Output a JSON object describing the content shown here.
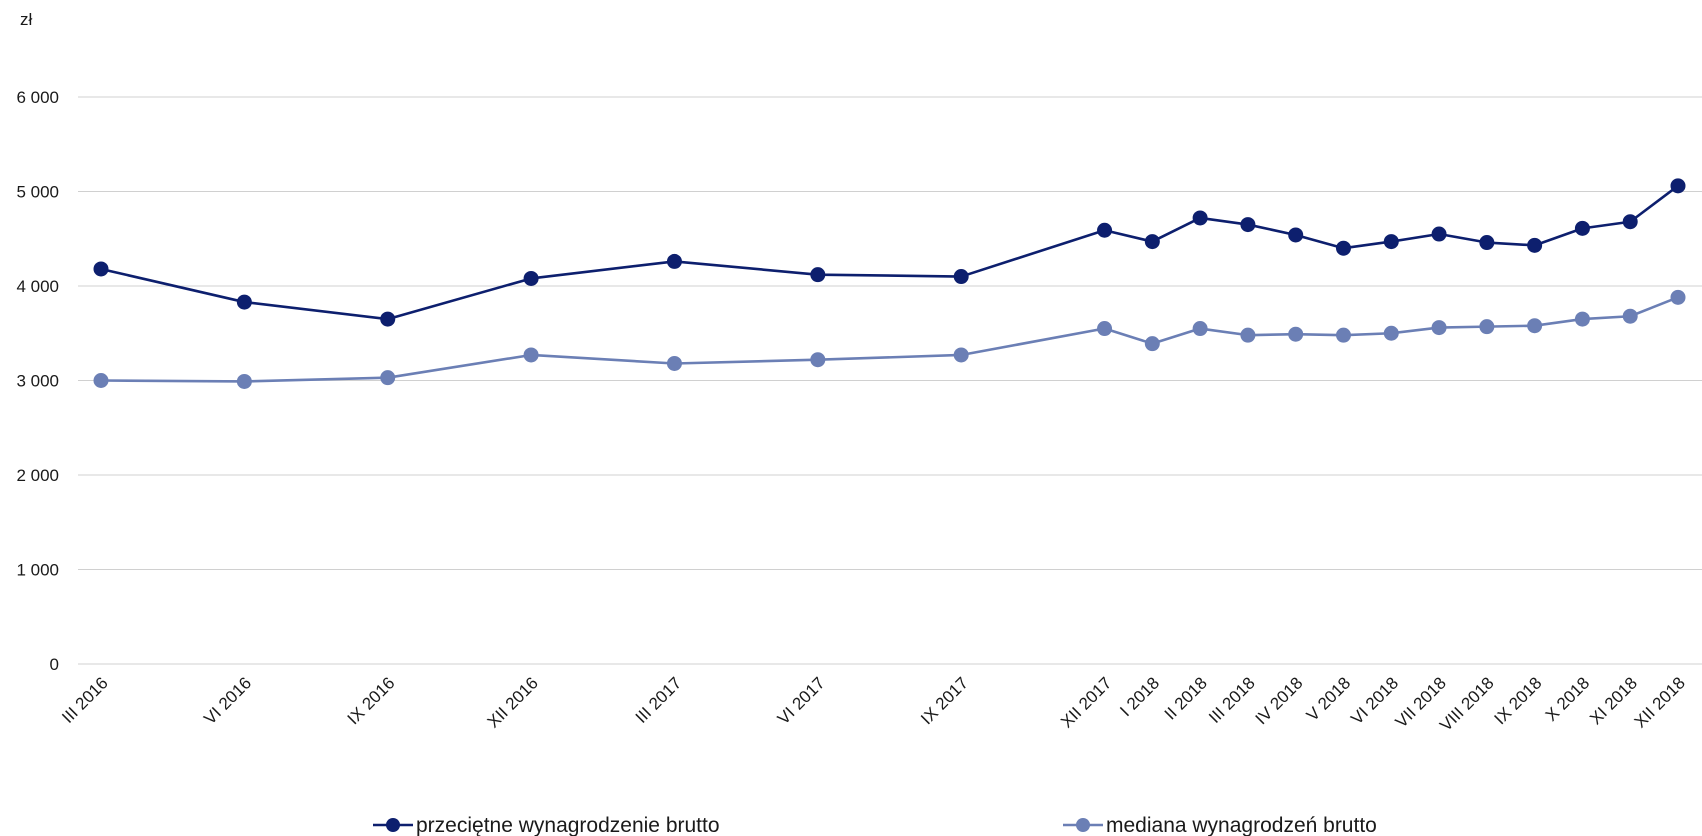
{
  "chart_data": {
    "type": "line",
    "title": "",
    "xlabel": "",
    "ylabel": "",
    "y_unit": "zł",
    "ylim": [
      0,
      6000
    ],
    "y_ticks": [
      0,
      1000,
      2000,
      3000,
      4000,
      5000,
      6000
    ],
    "y_tick_labels": [
      "0",
      "1 000",
      "2 000",
      "3 000",
      "4 000",
      "5 000",
      "6 000"
    ],
    "grid": true,
    "legend_position": "bottom",
    "x": [
      "III 2016",
      "VI 2016",
      "IX 2016",
      "XII 2016",
      "III 2017",
      "VI 2017",
      "IX 2017",
      "XII 2017",
      "I 2018",
      "II 2018",
      "III 2018",
      "IV 2018",
      "V 2018",
      "VI 2018",
      "VII 2018",
      "VIII 2018",
      "IX 2018",
      "X 2018",
      "XI 2018",
      "XII 2018"
    ],
    "x_month_index": [
      0,
      3,
      6,
      9,
      12,
      15,
      18,
      21,
      22,
      23,
      24,
      25,
      26,
      27,
      28,
      29,
      30,
      31,
      32,
      33
    ],
    "series": [
      {
        "name": "przeciętne wynagrodzenie brutto",
        "color": "#0d1f6e",
        "values": [
          4180,
          3830,
          3650,
          4080,
          4260,
          4120,
          4100,
          4590,
          4470,
          4720,
          4650,
          4540,
          4400,
          4470,
          4550,
          4460,
          4430,
          4610,
          4680,
          5060
        ]
      },
      {
        "name": "mediana wynagrodzeń brutto",
        "color": "#6b7fb5",
        "values": [
          3000,
          2990,
          3030,
          3270,
          3180,
          3220,
          3270,
          3550,
          3390,
          3550,
          3480,
          3490,
          3480,
          3500,
          3560,
          3570,
          3580,
          3650,
          3680,
          3880
        ]
      }
    ]
  },
  "grid_color": "#d0d0d0"
}
